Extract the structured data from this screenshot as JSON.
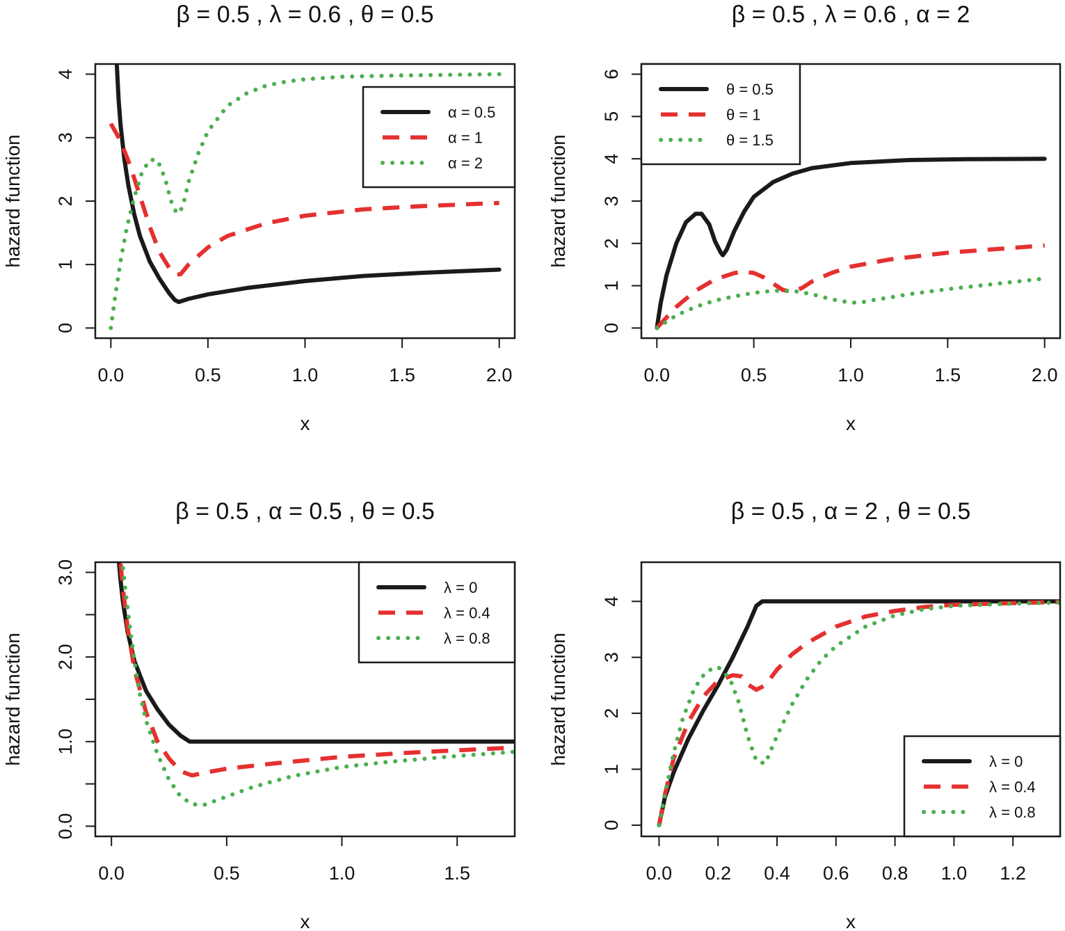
{
  "colors": {
    "black": "#1a1a1a",
    "red": "#e53030",
    "green": "#4caf50"
  },
  "chart_data": [
    {
      "type": "line",
      "title": "β = 0.5 , λ = 0.6 , θ = 0.5",
      "xlabel": "x",
      "ylabel": "hazard function",
      "xlim": [
        -0.08,
        2.08
      ],
      "ylim": [
        -0.16,
        4.16
      ],
      "xticks": [
        "0.0",
        "0.5",
        "1.0",
        "1.5",
        "2.0"
      ],
      "yticks": [
        "0",
        "1",
        "2",
        "3",
        "4"
      ],
      "legend_pos": "top-right",
      "series": [
        {
          "name": "α = 0.5",
          "style": "solid",
          "color": "#1a1a1a",
          "x": [
            0.03,
            0.04,
            0.05,
            0.07,
            0.09,
            0.12,
            0.15,
            0.2,
            0.25,
            0.3,
            0.33,
            0.35,
            0.4,
            0.5,
            0.7,
            1.0,
            1.3,
            1.6,
            2.0
          ],
          "y": [
            4.2,
            3.6,
            3.2,
            2.65,
            2.25,
            1.8,
            1.45,
            1.05,
            0.78,
            0.55,
            0.44,
            0.41,
            0.46,
            0.53,
            0.63,
            0.74,
            0.82,
            0.87,
            0.92
          ]
        },
        {
          "name": "α = 1",
          "style": "dashed",
          "color": "#e53030",
          "x": [
            0,
            0.05,
            0.1,
            0.15,
            0.2,
            0.25,
            0.3,
            0.34,
            0.36,
            0.4,
            0.5,
            0.6,
            0.8,
            1.0,
            1.3,
            1.6,
            2.0
          ],
          "y": [
            3.22,
            2.95,
            2.55,
            2.08,
            1.6,
            1.2,
            0.95,
            0.84,
            0.85,
            1.0,
            1.27,
            1.45,
            1.65,
            1.77,
            1.87,
            1.92,
            1.97
          ]
        },
        {
          "name": "α = 2",
          "style": "dotted",
          "color": "#4caf50",
          "x": [
            0,
            0.02,
            0.05,
            0.08,
            0.12,
            0.16,
            0.2,
            0.24,
            0.28,
            0.31,
            0.34,
            0.37,
            0.4,
            0.45,
            0.5,
            0.6,
            0.7,
            0.8,
            0.9,
            1.0,
            1.2,
            1.5,
            2.0
          ],
          "y": [
            0,
            0.45,
            1.05,
            1.55,
            2.05,
            2.45,
            2.65,
            2.65,
            2.35,
            2.0,
            1.8,
            1.9,
            2.3,
            2.75,
            3.1,
            3.5,
            3.7,
            3.82,
            3.88,
            3.92,
            3.96,
            3.98,
            4.0
          ]
        }
      ]
    },
    {
      "type": "line",
      "title": "β = 0.5 , λ = 0.6 , α = 2",
      "xlabel": "x",
      "ylabel": "hazard function",
      "xlim": [
        -0.08,
        2.08
      ],
      "ylim": [
        -0.24,
        6.24
      ],
      "xticks": [
        "0.0",
        "0.5",
        "1.0",
        "1.5",
        "2.0"
      ],
      "yticks": [
        "0",
        "1",
        "2",
        "3",
        "4",
        "5",
        "6"
      ],
      "legend_pos": "top-left",
      "series": [
        {
          "name": "θ = 0.5",
          "style": "solid",
          "color": "#1a1a1a",
          "x": [
            0,
            0.02,
            0.05,
            0.1,
            0.15,
            0.2,
            0.23,
            0.27,
            0.3,
            0.33,
            0.34,
            0.36,
            0.4,
            0.45,
            0.5,
            0.6,
            0.7,
            0.8,
            1.0,
            1.3,
            1.6,
            2.0
          ],
          "y": [
            0,
            0.6,
            1.25,
            2.0,
            2.5,
            2.7,
            2.7,
            2.45,
            2.05,
            1.78,
            1.72,
            1.85,
            2.3,
            2.75,
            3.1,
            3.45,
            3.65,
            3.78,
            3.9,
            3.97,
            3.99,
            4.0
          ]
        },
        {
          "name": "θ = 1",
          "style": "dashed",
          "color": "#e53030",
          "x": [
            0,
            0.05,
            0.1,
            0.2,
            0.3,
            0.4,
            0.45,
            0.5,
            0.55,
            0.6,
            0.65,
            0.7,
            0.75,
            0.8,
            0.9,
            1.0,
            1.2,
            1.5,
            2.0
          ],
          "y": [
            0,
            0.25,
            0.5,
            0.88,
            1.15,
            1.3,
            1.33,
            1.3,
            1.2,
            1.05,
            0.9,
            0.85,
            0.95,
            1.1,
            1.3,
            1.45,
            1.62,
            1.78,
            1.95
          ]
        },
        {
          "name": "θ = 1.5",
          "style": "dotted",
          "color": "#4caf50",
          "x": [
            0,
            0.05,
            0.1,
            0.2,
            0.3,
            0.4,
            0.5,
            0.6,
            0.7,
            0.8,
            0.9,
            1.0,
            1.05,
            1.1,
            1.2,
            1.3,
            1.5,
            1.7,
            2.0
          ],
          "y": [
            0,
            0.15,
            0.3,
            0.5,
            0.65,
            0.75,
            0.83,
            0.88,
            0.88,
            0.8,
            0.68,
            0.6,
            0.6,
            0.65,
            0.72,
            0.8,
            0.92,
            1.02,
            1.17
          ]
        }
      ]
    },
    {
      "type": "line",
      "title": "β = 0.5 , α = 0.5 , θ = 0.5",
      "xlabel": "x",
      "ylabel": "hazard function",
      "xlim": [
        -0.07,
        1.75
      ],
      "ylim": [
        -0.12,
        3.12
      ],
      "xticks": [
        "0.0",
        "0.5",
        "1.0",
        "1.5"
      ],
      "yticks": [
        "0.0",
        "1.0",
        "2.0",
        "3.0"
      ],
      "legend_pos": "top-right",
      "series": [
        {
          "name": "λ = 0",
          "style": "solid",
          "color": "#1a1a1a",
          "x": [
            0.03,
            0.04,
            0.05,
            0.07,
            0.1,
            0.15,
            0.2,
            0.25,
            0.3,
            0.34,
            0.36,
            0.5,
            1.0,
            1.75
          ],
          "y": [
            3.2,
            2.9,
            2.65,
            2.3,
            1.95,
            1.6,
            1.38,
            1.2,
            1.07,
            1.0,
            1.0,
            1.0,
            1.0,
            1.0
          ]
        },
        {
          "name": "λ = 0.4",
          "style": "dashed",
          "color": "#e53030",
          "x": [
            0.04,
            0.05,
            0.07,
            0.1,
            0.15,
            0.2,
            0.25,
            0.3,
            0.35,
            0.4,
            0.5,
            0.7,
            1.0,
            1.3,
            1.75
          ],
          "y": [
            3.1,
            2.8,
            2.35,
            1.85,
            1.35,
            1.0,
            0.8,
            0.65,
            0.6,
            0.63,
            0.68,
            0.74,
            0.82,
            0.87,
            0.93
          ]
        },
        {
          "name": "λ = 0.8",
          "style": "dotted",
          "color": "#4caf50",
          "x": [
            0.05,
            0.06,
            0.08,
            0.1,
            0.12,
            0.15,
            0.2,
            0.25,
            0.3,
            0.35,
            0.4,
            0.45,
            0.5,
            0.6,
            0.7,
            0.8,
            1.0,
            1.2,
            1.5,
            1.75
          ],
          "y": [
            3.05,
            2.8,
            2.35,
            1.95,
            1.6,
            1.25,
            0.85,
            0.55,
            0.35,
            0.26,
            0.25,
            0.3,
            0.35,
            0.45,
            0.53,
            0.6,
            0.7,
            0.76,
            0.83,
            0.88
          ]
        }
      ]
    },
    {
      "type": "line",
      "title": "β = 0.5 , α = 2 , θ = 0.5",
      "xlabel": "x",
      "ylabel": "hazard function",
      "xlim": [
        -0.06,
        1.36
      ],
      "ylim": [
        -0.2,
        4.7
      ],
      "xticks": [
        "0.0",
        "0.2",
        "0.4",
        "0.6",
        "0.8",
        "1.0",
        "1.2"
      ],
      "yticks": [
        "0",
        "1",
        "2",
        "3",
        "4"
      ],
      "legend_pos": "bottom-right",
      "series": [
        {
          "name": "λ = 0",
          "style": "solid",
          "color": "#1a1a1a",
          "x": [
            0,
            0.02,
            0.05,
            0.1,
            0.15,
            0.2,
            0.25,
            0.3,
            0.33,
            0.35,
            0.5,
            1.0,
            1.36
          ],
          "y": [
            0,
            0.5,
            0.95,
            1.55,
            2.05,
            2.5,
            3.0,
            3.55,
            3.92,
            4.0,
            4.0,
            4.0,
            4.0
          ]
        },
        {
          "name": "λ = 0.4",
          "style": "dashed",
          "color": "#e53030",
          "x": [
            0,
            0.02,
            0.05,
            0.1,
            0.15,
            0.2,
            0.25,
            0.28,
            0.3,
            0.33,
            0.36,
            0.4,
            0.45,
            0.5,
            0.6,
            0.7,
            0.8,
            0.9,
            1.0,
            1.2,
            1.36
          ],
          "y": [
            0,
            0.55,
            1.2,
            1.85,
            2.3,
            2.58,
            2.68,
            2.66,
            2.52,
            2.42,
            2.5,
            2.78,
            3.05,
            3.25,
            3.55,
            3.73,
            3.83,
            3.9,
            3.94,
            3.97,
            3.99
          ]
        },
        {
          "name": "λ = 0.8",
          "style": "dotted",
          "color": "#4caf50",
          "x": [
            0,
            0.02,
            0.05,
            0.08,
            0.12,
            0.16,
            0.2,
            0.24,
            0.27,
            0.3,
            0.33,
            0.36,
            0.4,
            0.45,
            0.5,
            0.55,
            0.6,
            0.7,
            0.8,
            0.9,
            1.0,
            1.2,
            1.36
          ],
          "y": [
            0,
            0.55,
            1.3,
            1.9,
            2.45,
            2.75,
            2.83,
            2.62,
            2.2,
            1.6,
            1.15,
            1.1,
            1.6,
            2.15,
            2.6,
            2.95,
            3.2,
            3.55,
            3.75,
            3.86,
            3.92,
            3.96,
            3.98
          ]
        }
      ]
    }
  ]
}
